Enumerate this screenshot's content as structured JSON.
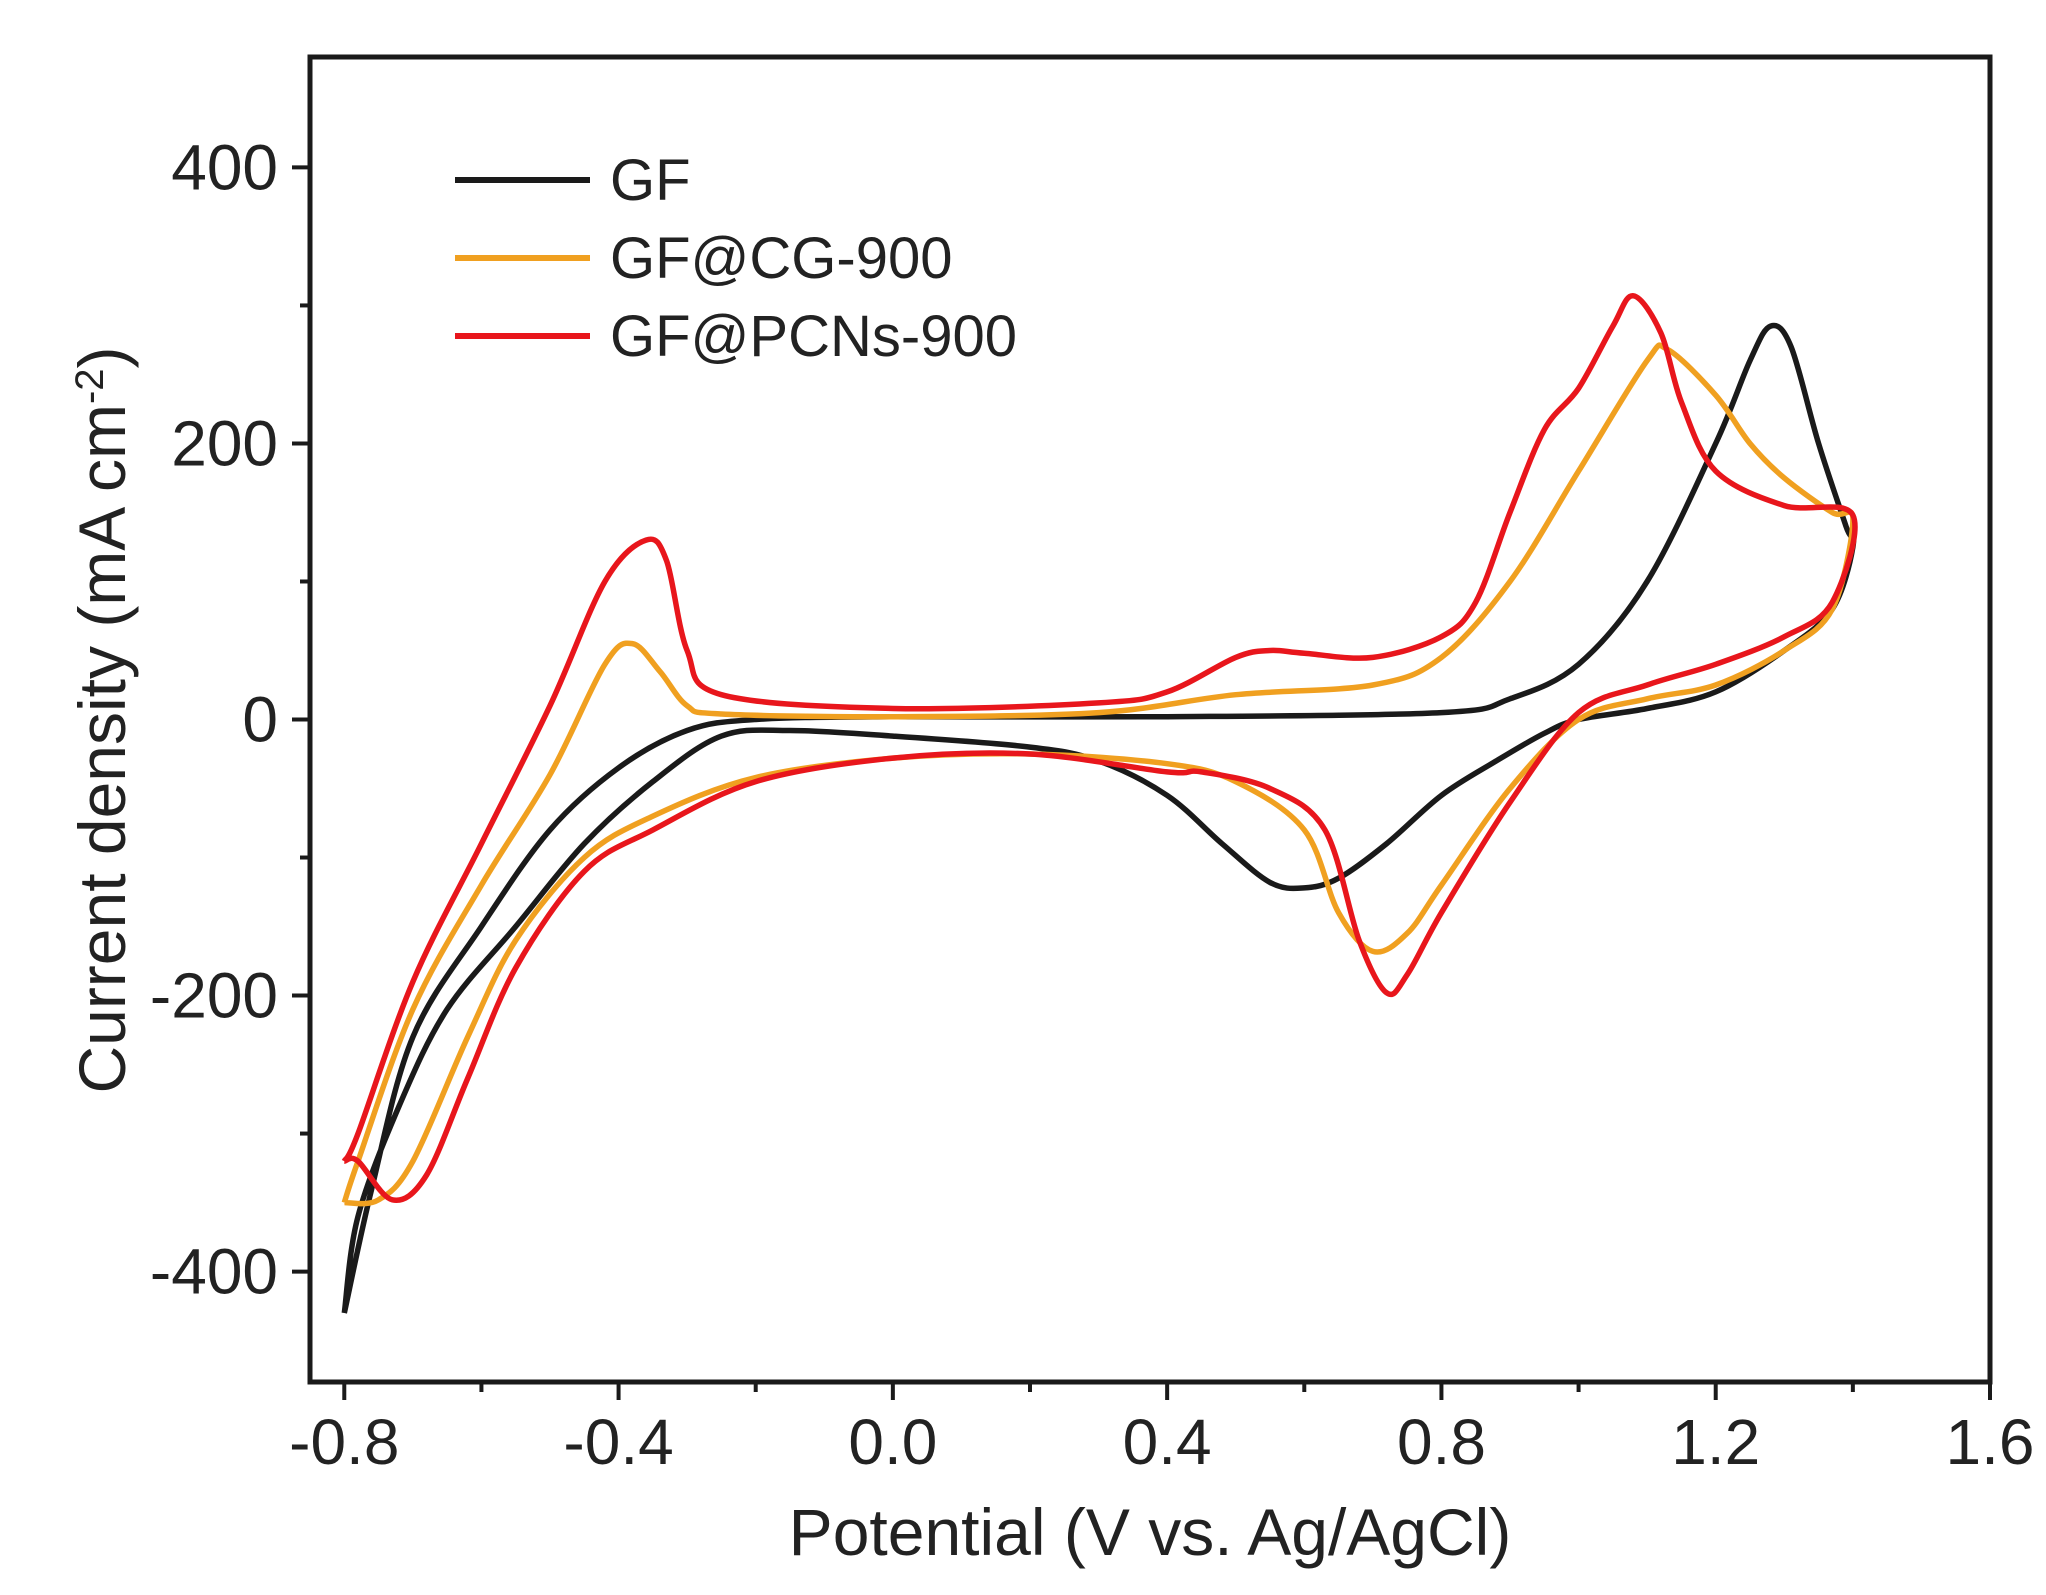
{
  "chart_data": {
    "type": "line",
    "title": "",
    "xlabel": "Potential (V vs. Ag/AgCl)",
    "ylabel": {
      "text": "Current density (mA cm",
      "superscript": "-2",
      "suffix": ")"
    },
    "xlim": [
      -0.85,
      1.6
    ],
    "ylim": [
      -480,
      480
    ],
    "xticks": [
      -0.8,
      -0.4,
      0.0,
      0.4,
      0.8,
      1.2,
      1.6
    ],
    "xtick_labels": [
      "-0.8",
      "-0.4",
      "0.0",
      "0.4",
      "0.8",
      "1.2",
      "1.6"
    ],
    "yticks": [
      -400,
      -200,
      0,
      200,
      400
    ],
    "ytick_labels": [
      "-400",
      "-200",
      "0",
      "200",
      "400"
    ],
    "grid": false,
    "legend_position": "top-left",
    "series": [
      {
        "name": "GF",
        "color": "#1a1a1a",
        "points": [
          [
            -0.8,
            -430
          ],
          [
            -0.76,
            -340
          ],
          [
            -0.7,
            -230
          ],
          [
            -0.6,
            -150
          ],
          [
            -0.5,
            -80
          ],
          [
            -0.4,
            -35
          ],
          [
            -0.3,
            -8
          ],
          [
            -0.2,
            0
          ],
          [
            0.0,
            2
          ],
          [
            0.4,
            2
          ],
          [
            0.8,
            5
          ],
          [
            0.9,
            15
          ],
          [
            1.0,
            40
          ],
          [
            1.1,
            100
          ],
          [
            1.2,
            200
          ],
          [
            1.25,
            260
          ],
          [
            1.28,
            285
          ],
          [
            1.31,
            270
          ],
          [
            1.35,
            200
          ],
          [
            1.39,
            140
          ],
          [
            1.4,
            125
          ],
          [
            1.37,
            80
          ],
          [
            1.3,
            50
          ],
          [
            1.2,
            20
          ],
          [
            1.1,
            8
          ],
          [
            1.0,
            0
          ],
          [
            0.95,
            -10
          ],
          [
            0.88,
            -30
          ],
          [
            0.8,
            -55
          ],
          [
            0.72,
            -90
          ],
          [
            0.65,
            -115
          ],
          [
            0.6,
            -122
          ],
          [
            0.55,
            -118
          ],
          [
            0.48,
            -90
          ],
          [
            0.4,
            -55
          ],
          [
            0.3,
            -30
          ],
          [
            0.2,
            -20
          ],
          [
            0.0,
            -12
          ],
          [
            -0.15,
            -8
          ],
          [
            -0.25,
            -12
          ],
          [
            -0.35,
            -45
          ],
          [
            -0.45,
            -90
          ],
          [
            -0.55,
            -150
          ],
          [
            -0.65,
            -210
          ],
          [
            -0.72,
            -280
          ],
          [
            -0.78,
            -360
          ],
          [
            -0.8,
            -430
          ]
        ]
      },
      {
        "name": "GF@CG-900",
        "color": "#f0a020",
        "points": [
          [
            -0.8,
            -350
          ],
          [
            -0.78,
            -320
          ],
          [
            -0.7,
            -210
          ],
          [
            -0.6,
            -120
          ],
          [
            -0.5,
            -40
          ],
          [
            -0.42,
            40
          ],
          [
            -0.38,
            55
          ],
          [
            -0.34,
            35
          ],
          [
            -0.3,
            10
          ],
          [
            -0.25,
            4
          ],
          [
            0.0,
            2
          ],
          [
            0.3,
            5
          ],
          [
            0.5,
            18
          ],
          [
            0.7,
            25
          ],
          [
            0.8,
            45
          ],
          [
            0.9,
            100
          ],
          [
            1.0,
            180
          ],
          [
            1.1,
            260
          ],
          [
            1.13,
            268
          ],
          [
            1.2,
            235
          ],
          [
            1.25,
            200
          ],
          [
            1.3,
            175
          ],
          [
            1.37,
            150
          ],
          [
            1.4,
            145
          ],
          [
            1.37,
            80
          ],
          [
            1.3,
            50
          ],
          [
            1.2,
            25
          ],
          [
            1.1,
            15
          ],
          [
            1.0,
            0
          ],
          [
            0.9,
            -50
          ],
          [
            0.8,
            -120
          ],
          [
            0.75,
            -155
          ],
          [
            0.7,
            -168
          ],
          [
            0.65,
            -140
          ],
          [
            0.6,
            -80
          ],
          [
            0.5,
            -45
          ],
          [
            0.4,
            -32
          ],
          [
            0.2,
            -25
          ],
          [
            0.0,
            -28
          ],
          [
            -0.2,
            -42
          ],
          [
            -0.35,
            -70
          ],
          [
            -0.45,
            -100
          ],
          [
            -0.55,
            -160
          ],
          [
            -0.62,
            -230
          ],
          [
            -0.7,
            -320
          ],
          [
            -0.75,
            -348
          ],
          [
            -0.8,
            -350
          ]
        ]
      },
      {
        "name": "GF@PCNs-900",
        "color": "#e8161c",
        "points": [
          [
            -0.8,
            -320
          ],
          [
            -0.78,
            -300
          ],
          [
            -0.7,
            -190
          ],
          [
            -0.6,
            -90
          ],
          [
            -0.5,
            10
          ],
          [
            -0.42,
            100
          ],
          [
            -0.36,
            130
          ],
          [
            -0.33,
            115
          ],
          [
            -0.3,
            50
          ],
          [
            -0.25,
            18
          ],
          [
            0.0,
            8
          ],
          [
            0.3,
            12
          ],
          [
            0.4,
            20
          ],
          [
            0.5,
            45
          ],
          [
            0.55,
            50
          ],
          [
            0.6,
            48
          ],
          [
            0.7,
            45
          ],
          [
            0.8,
            60
          ],
          [
            0.85,
            85
          ],
          [
            0.9,
            150
          ],
          [
            0.95,
            210
          ],
          [
            1.0,
            240
          ],
          [
            1.05,
            285
          ],
          [
            1.08,
            307
          ],
          [
            1.12,
            280
          ],
          [
            1.15,
            230
          ],
          [
            1.2,
            180
          ],
          [
            1.3,
            155
          ],
          [
            1.4,
            148
          ],
          [
            1.37,
            85
          ],
          [
            1.3,
            60
          ],
          [
            1.2,
            40
          ],
          [
            1.1,
            25
          ],
          [
            1.0,
            5
          ],
          [
            0.9,
            -60
          ],
          [
            0.8,
            -140
          ],
          [
            0.75,
            -185
          ],
          [
            0.72,
            -198
          ],
          [
            0.68,
            -160
          ],
          [
            0.63,
            -80
          ],
          [
            0.55,
            -50
          ],
          [
            0.45,
            -38
          ],
          [
            0.4,
            -38
          ],
          [
            0.2,
            -25
          ],
          [
            0.0,
            -28
          ],
          [
            -0.2,
            -45
          ],
          [
            -0.35,
            -80
          ],
          [
            -0.45,
            -110
          ],
          [
            -0.55,
            -180
          ],
          [
            -0.62,
            -260
          ],
          [
            -0.68,
            -330
          ],
          [
            -0.73,
            -348
          ],
          [
            -0.78,
            -320
          ],
          [
            -0.8,
            -320
          ]
        ]
      }
    ]
  }
}
